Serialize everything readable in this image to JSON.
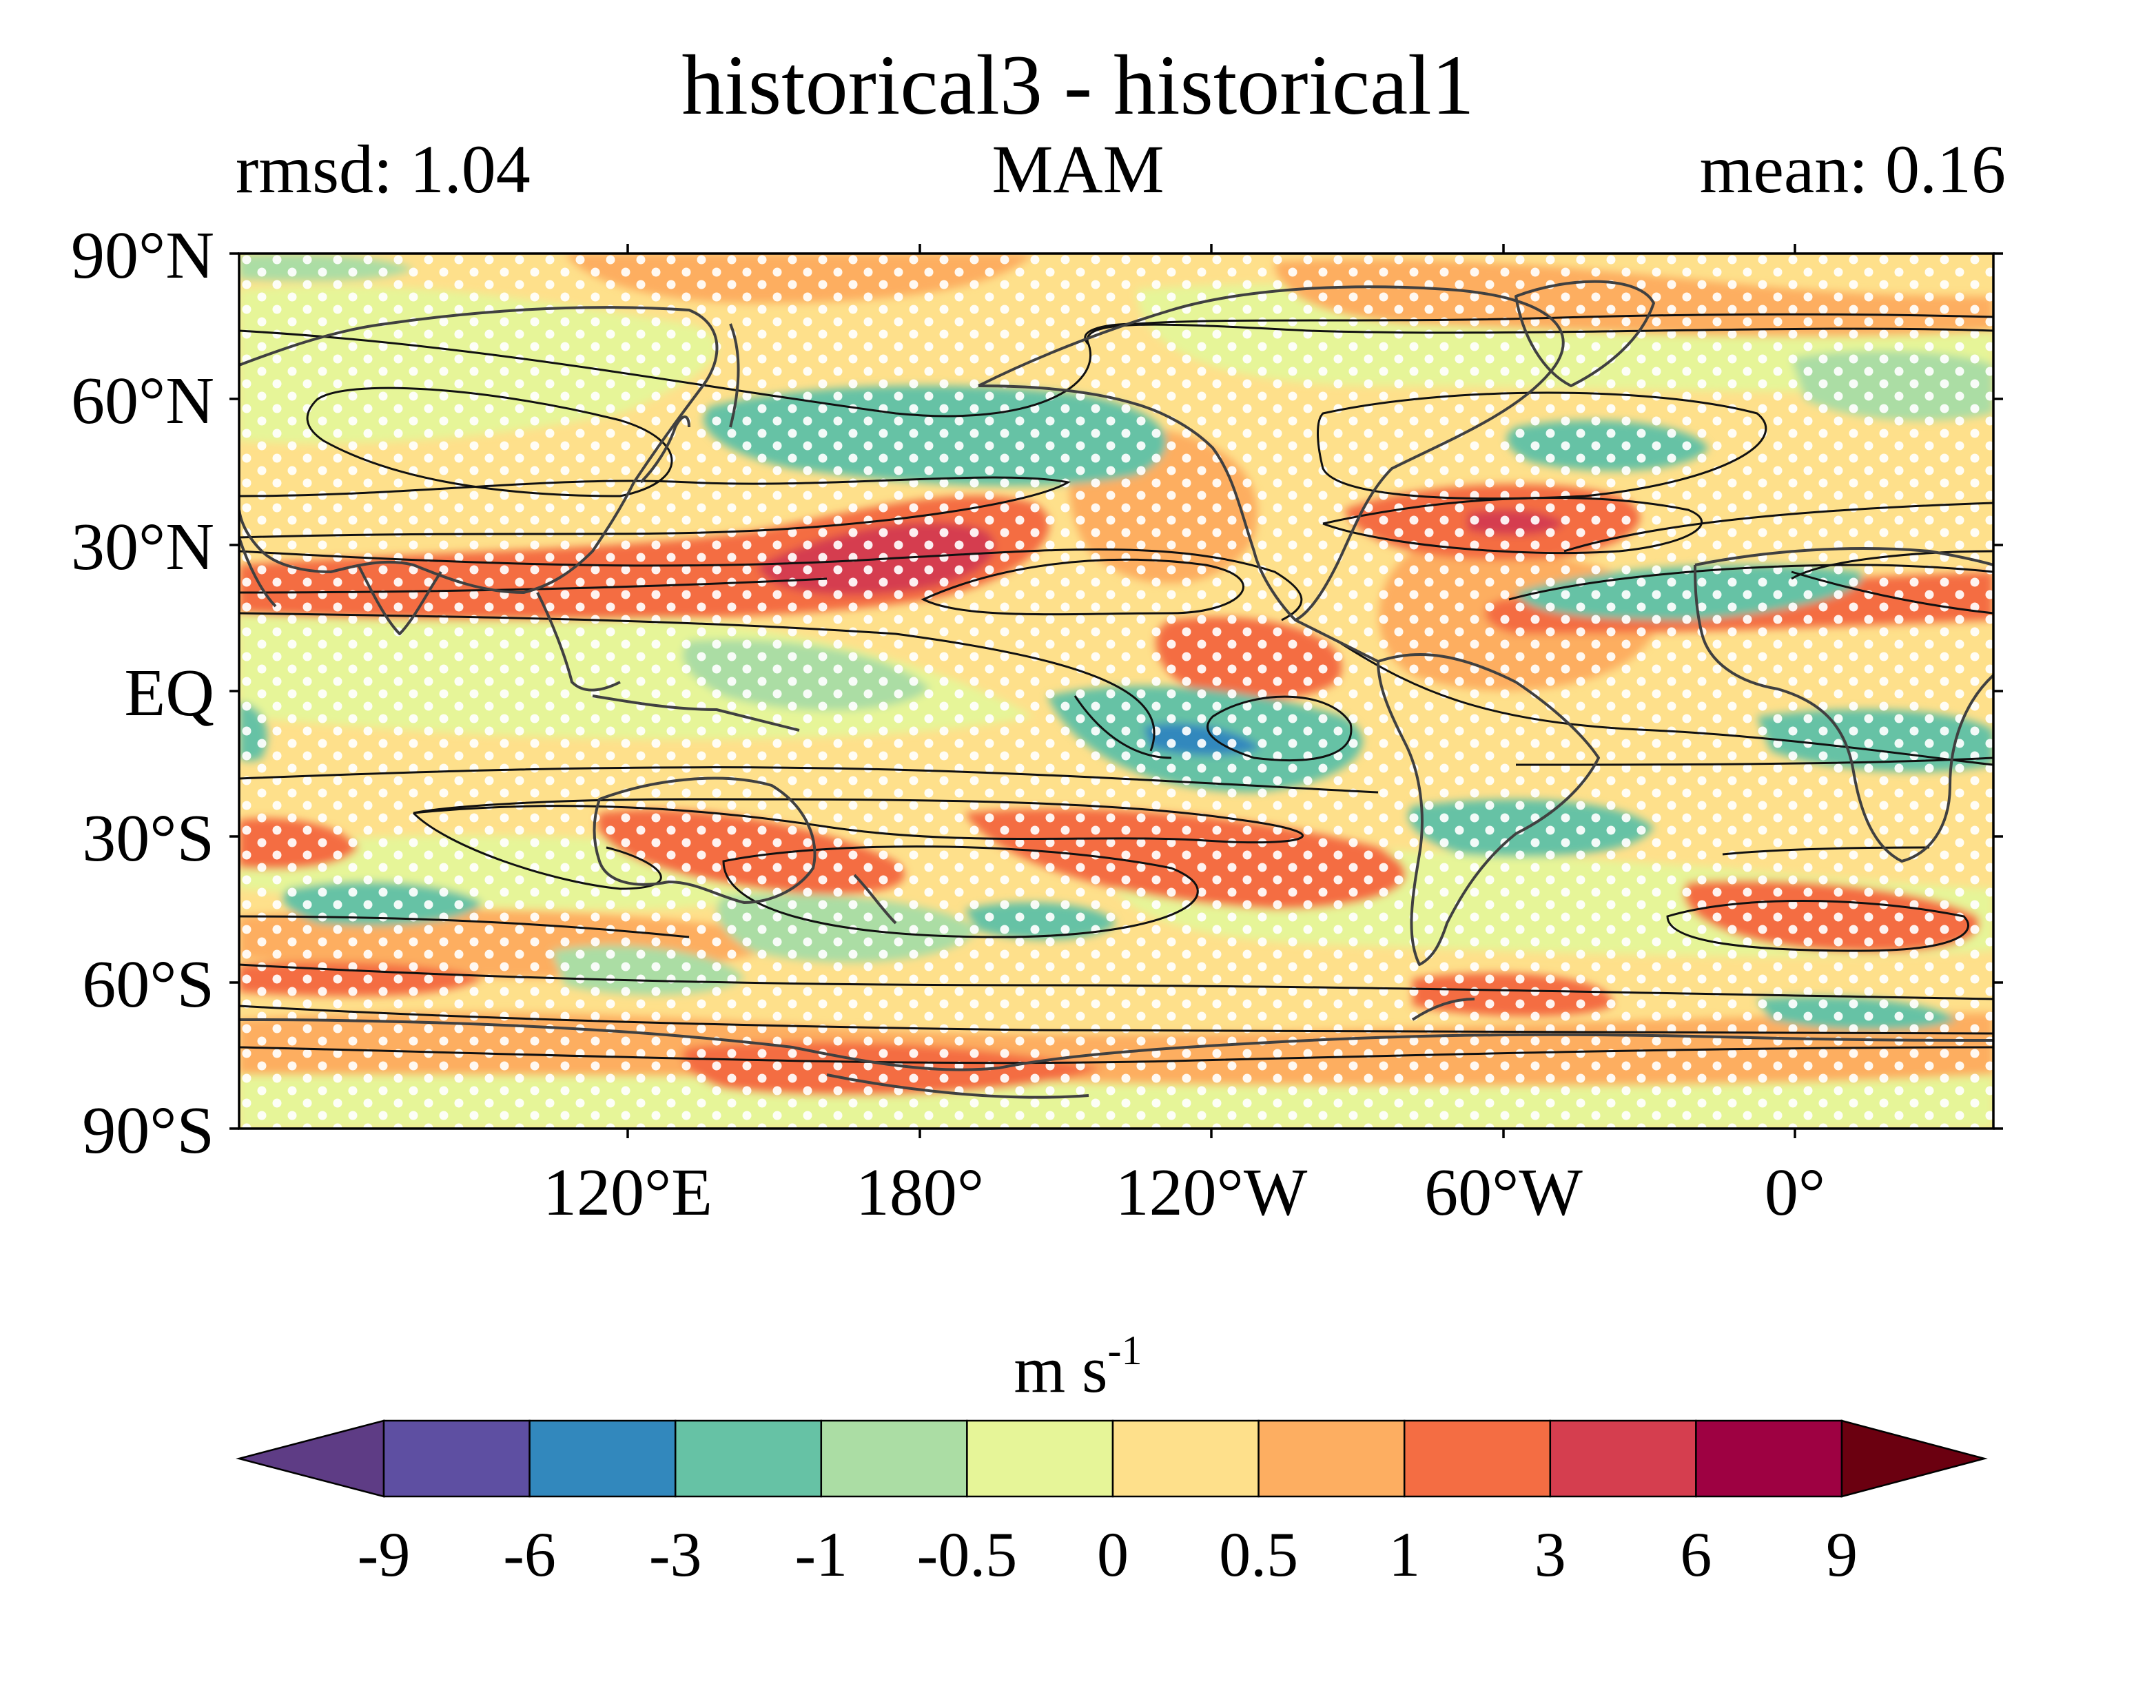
{
  "title": "historical3 - historical1",
  "subtitle": {
    "left": "rmsd: 1.04",
    "center": "MAM",
    "right": "mean: 0.16"
  },
  "map": {
    "lat_labels": [
      "90°N",
      "60°N",
      "30°N",
      "EQ",
      "30°S",
      "60°S",
      "90°S"
    ],
    "lon_labels": [
      "120°E",
      "180°",
      "120°W",
      "60°W",
      "0°"
    ],
    "lon_range_deg_east": [
      40,
      400
    ],
    "lat_range": [
      -90,
      90
    ],
    "contour_color": "#111111",
    "coastline_color": "#404040",
    "stipple_color": "#ffffff",
    "stippling": true
  },
  "colorbar": {
    "units_main": "m s",
    "units_exp": "-1",
    "levels": [
      "-9",
      "-6",
      "-3",
      "-1",
      "-0.5",
      "0",
      "0.5",
      "1",
      "3",
      "6",
      "9"
    ],
    "under_color": "#5e3c85",
    "over_color": "#6b0010",
    "colors": [
      "#5e4fa2",
      "#3288bd",
      "#66c2a5",
      "#abdda4",
      "#e6f598",
      "#fee08b",
      "#fdae61",
      "#f46d43",
      "#d53e4f",
      "#9e0142"
    ],
    "extend": "both",
    "orientation": "horizontal"
  }
}
